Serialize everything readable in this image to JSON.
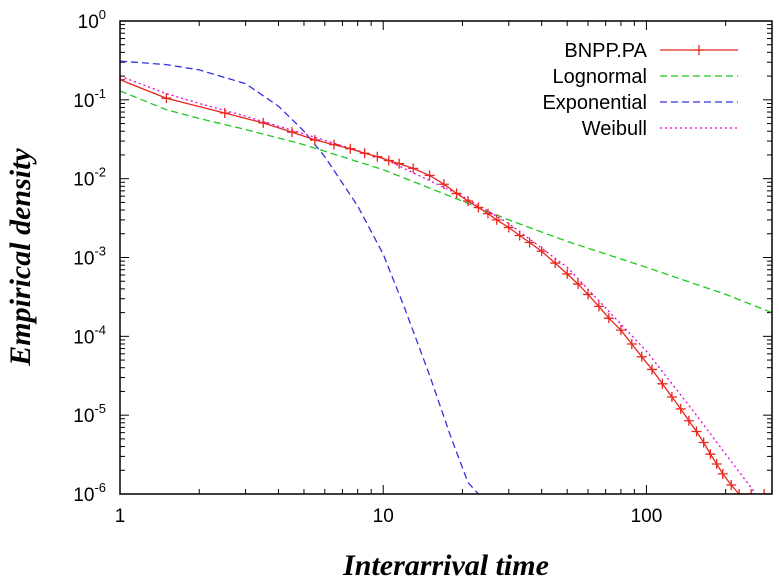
{
  "chart_data": {
    "type": "line",
    "title": "",
    "xlabel": "Interarrival time",
    "ylabel": "Empirical density",
    "x_scale": "log",
    "y_scale": "log",
    "xlim": [
      1,
      300
    ],
    "ylim": [
      1e-06,
      1
    ],
    "grid": false,
    "legend_position": "top-right",
    "x_ticks": [
      {
        "value": 1,
        "label": "1"
      },
      {
        "value": 10,
        "label": "10"
      },
      {
        "value": 100,
        "label": "100"
      }
    ],
    "y_ticks": [
      {
        "value": 1,
        "base": "10",
        "exp": "0"
      },
      {
        "value": 0.1,
        "base": "10",
        "exp": "-1"
      },
      {
        "value": 0.01,
        "base": "10",
        "exp": "-2"
      },
      {
        "value": 0.001,
        "base": "10",
        "exp": "-3"
      },
      {
        "value": 0.0001,
        "base": "10",
        "exp": "-4"
      },
      {
        "value": 1e-05,
        "base": "10",
        "exp": "-5"
      },
      {
        "value": 1e-06,
        "base": "10",
        "exp": "-6"
      }
    ],
    "series": [
      {
        "name": "BNPP.PA",
        "color": "#e8281e",
        "style": "solid-crosses",
        "points": [
          [
            1,
            0.18
          ],
          [
            1.5,
            0.105
          ],
          [
            2.5,
            0.068
          ],
          [
            3.5,
            0.051
          ],
          [
            4.5,
            0.039
          ],
          [
            5.5,
            0.031
          ],
          [
            6.5,
            0.027
          ],
          [
            7.5,
            0.024
          ],
          [
            8.5,
            0.021
          ],
          [
            9.5,
            0.019
          ],
          [
            10.5,
            0.017
          ],
          [
            11.5,
            0.0155
          ],
          [
            13,
            0.0135
          ],
          [
            15,
            0.011
          ],
          [
            17,
            0.0085
          ],
          [
            19,
            0.0065
          ],
          [
            21,
            0.0052
          ],
          [
            23,
            0.0043
          ],
          [
            25,
            0.0036
          ],
          [
            27,
            0.003
          ],
          [
            30,
            0.0024
          ],
          [
            33,
            0.0019
          ],
          [
            36,
            0.00155
          ],
          [
            40,
            0.0012
          ],
          [
            45,
            0.00085
          ],
          [
            50,
            0.00062
          ],
          [
            55,
            0.00046
          ],
          [
            60,
            0.00034
          ],
          [
            66,
            0.00024
          ],
          [
            72,
            0.00017
          ],
          [
            80,
            0.00012
          ],
          [
            88,
            8e-05
          ],
          [
            96,
            5.5e-05
          ],
          [
            105,
            3.8e-05
          ],
          [
            115,
            2.5e-05
          ],
          [
            125,
            1.7e-05
          ],
          [
            135,
            1.2e-05
          ],
          [
            145,
            8.5e-06
          ],
          [
            155,
            6.2e-06
          ],
          [
            165,
            4.5e-06
          ],
          [
            175,
            3.2e-06
          ],
          [
            185,
            2.4e-06
          ],
          [
            195,
            1.8e-06
          ],
          [
            210,
            1.3e-06
          ],
          [
            225,
            1e-06
          ],
          [
            250,
            1e-06
          ],
          [
            280,
            1e-06
          ],
          [
            300,
            1e-06
          ]
        ]
      },
      {
        "name": "Lognormal",
        "color": "#1ec81e",
        "style": "dashed",
        "points": [
          [
            1,
            0.13
          ],
          [
            1.5,
            0.075
          ],
          [
            2,
            0.058
          ],
          [
            3,
            0.042
          ],
          [
            5,
            0.027
          ],
          [
            10,
            0.013
          ],
          [
            20,
            0.0052
          ],
          [
            30,
            0.003
          ],
          [
            50,
            0.0016
          ],
          [
            100,
            0.00075
          ],
          [
            200,
            0.00034
          ],
          [
            300,
            0.0002
          ]
        ]
      },
      {
        "name": "Exponential",
        "color": "#3232e0",
        "style": "dashed",
        "points": [
          [
            1,
            0.31
          ],
          [
            1.5,
            0.28
          ],
          [
            2,
            0.24
          ],
          [
            3,
            0.16
          ],
          [
            4,
            0.083
          ],
          [
            5,
            0.04
          ],
          [
            6,
            0.019
          ],
          [
            8,
            0.0045
          ],
          [
            10,
            0.0011
          ],
          [
            12,
            0.00024
          ],
          [
            15,
            3.2e-05
          ],
          [
            18,
            5.5e-06
          ],
          [
            21,
            1.4e-06
          ],
          [
            23,
            1e-06
          ]
        ]
      },
      {
        "name": "Weibull",
        "color": "#e000e0",
        "style": "dotted",
        "points": [
          [
            1,
            0.2
          ],
          [
            1.5,
            0.12
          ],
          [
            2,
            0.09
          ],
          [
            3,
            0.062
          ],
          [
            5,
            0.037
          ],
          [
            10,
            0.018
          ],
          [
            20,
            0.006
          ],
          [
            30,
            0.0027
          ],
          [
            50,
            0.00075
          ],
          [
            100,
            6.5e-05
          ],
          [
            150,
            1.15e-05
          ],
          [
            200,
            3.2e-06
          ],
          [
            250,
            1.2e-06
          ],
          [
            260,
            1e-06
          ]
        ]
      }
    ]
  }
}
